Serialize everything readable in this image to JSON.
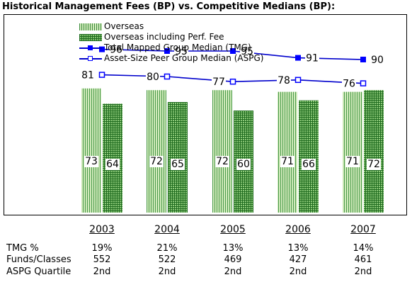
{
  "title": "Historical Management Fees (BP) vs. Competitive Medians (BP):",
  "legend": {
    "overseas": "Overseas",
    "overseas_perf": "Overseas including Perf. Fee",
    "tmg": "Total Mapped Group Median (TMG)",
    "aspg": "Asset-Size Peer Group Median (ASPG)"
  },
  "colors": {
    "bar_light": "#cfe9b9",
    "bar_dark": "#7fbf6a",
    "line": "#0000cc"
  },
  "chart_data": {
    "type": "bar",
    "categories": [
      "2003",
      "2004",
      "2005",
      "2006",
      "2007"
    ],
    "series": [
      {
        "name": "Overseas",
        "type": "bar",
        "values": [
          73,
          72,
          72,
          71,
          71
        ]
      },
      {
        "name": "Overseas including Perf. Fee",
        "type": "bar",
        "values": [
          64,
          65,
          60,
          66,
          72
        ]
      },
      {
        "name": "Total Mapped Group Median (TMG)",
        "type": "line",
        "marker": "filled-square",
        "values": [
          96,
          95,
          95,
          91,
          90
        ]
      },
      {
        "name": "Asset-Size Peer Group Median (ASPG)",
        "type": "line",
        "marker": "open-square",
        "values": [
          81,
          80,
          77,
          78,
          76
        ]
      }
    ],
    "ylim": [
      0,
      100
    ]
  },
  "table": {
    "rows": [
      {
        "label": "TMG %",
        "values": [
          "19%",
          "21%",
          "13%",
          "13%",
          "14%"
        ]
      },
      {
        "label": "Funds/Classes",
        "values": [
          "552",
          "522",
          "469",
          "427",
          "461"
        ]
      },
      {
        "label": "ASPG Quartile",
        "values": [
          "2nd",
          "2nd",
          "2nd",
          "2nd",
          "2nd"
        ]
      }
    ]
  }
}
